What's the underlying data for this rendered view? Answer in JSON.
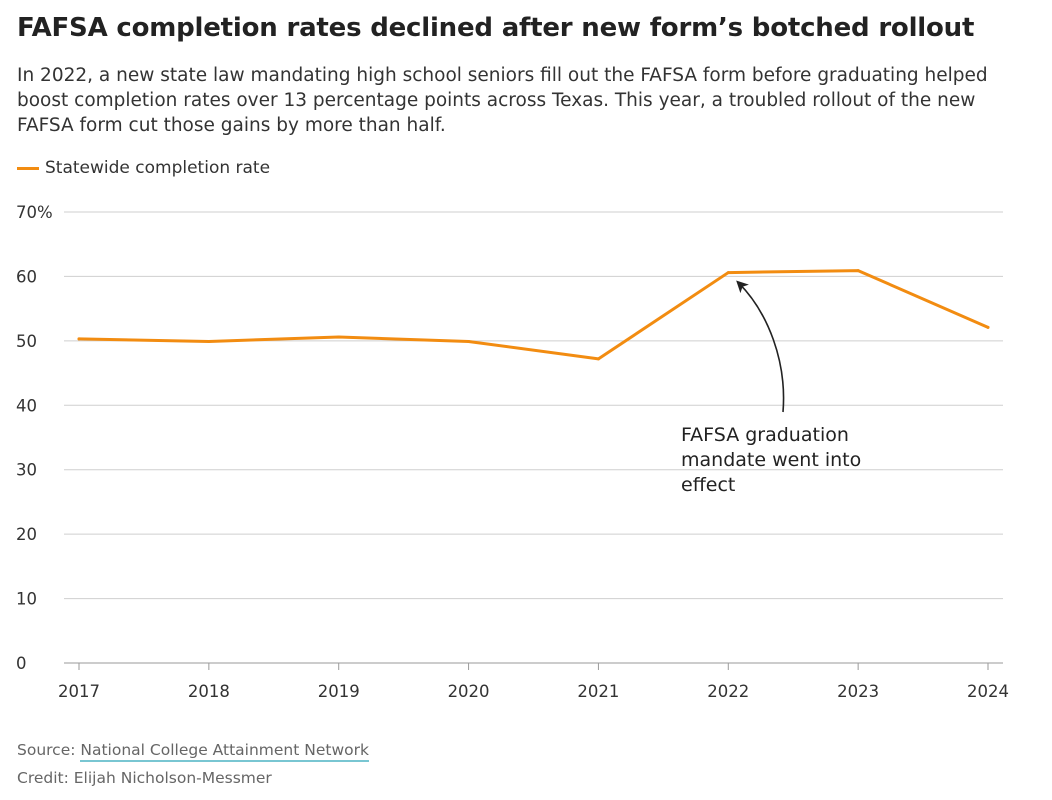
{
  "title": "FAFSA completion rates declined after new form’s botched rollout",
  "subtitle": "In 2022, a new state law mandating high school seniors fill out the FAFSA form before graduating helped boost completion rates over 13 percentage points across Texas. This year, a troubled rollout of the new FAFSA form cut those gains by more than half.",
  "legend": {
    "label": "Statewide completion rate",
    "color": "#f28c11"
  },
  "chart_data": {
    "type": "line",
    "x": [
      "2017",
      "2018",
      "2019",
      "2020",
      "2021",
      "2022",
      "2023",
      "2024"
    ],
    "series": [
      {
        "name": "Statewide completion rate",
        "values": [
          50.3,
          49.9,
          50.6,
          49.9,
          47.2,
          60.6,
          60.9,
          52.1
        ],
        "color": "#f28c11"
      }
    ],
    "ylim": [
      0,
      70
    ],
    "yticks": [
      0,
      10,
      20,
      30,
      40,
      50,
      60,
      70
    ],
    "ytick_labels": [
      "0",
      "10",
      "20",
      "30",
      "40",
      "50",
      "60",
      "70%"
    ],
    "grid": true,
    "legend_position": "top-left",
    "annotations": [
      {
        "text_lines": [
          "FAFSA graduation",
          "mandate went into",
          "effect"
        ],
        "x": "2022",
        "y": 60.6
      }
    ]
  },
  "footer": {
    "source_prefix": "Source: ",
    "source_link": "National College Attainment Network",
    "credit": "Credit: Elijah Nicholson-Messmer"
  }
}
